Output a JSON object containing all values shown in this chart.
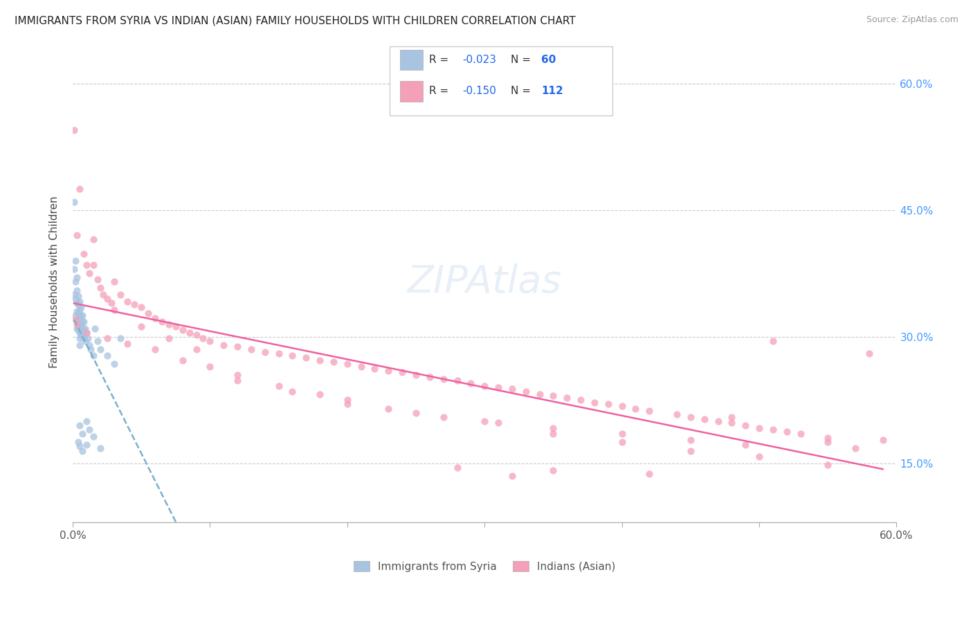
{
  "title": "IMMIGRANTS FROM SYRIA VS INDIAN (ASIAN) FAMILY HOUSEHOLDS WITH CHILDREN CORRELATION CHART",
  "source": "Source: ZipAtlas.com",
  "ylabel": "Family Households with Children",
  "color_syria": "#a8c4e0",
  "color_india": "#f4a0b8",
  "trendline_syria_color": "#7aafd0",
  "trendline_india_color": "#f060a0",
  "watermark": "ZIPAtlas",
  "xlim": [
    0.0,
    0.6
  ],
  "ylim": [
    0.08,
    0.65
  ],
  "ytick_vals": [
    0.15,
    0.3,
    0.45,
    0.6
  ],
  "ytick_labels": [
    "15.0%",
    "30.0%",
    "45.0%",
    "60.0%"
  ],
  "xtick_vals": [
    0.0,
    0.1,
    0.2,
    0.3,
    0.4,
    0.5,
    0.6
  ],
  "xtick_labels": [
    "0.0%",
    "",
    "",
    "",
    "",
    "",
    "60.0%"
  ],
  "syria_x": [
    0.001,
    0.001,
    0.001,
    0.002,
    0.002,
    0.002,
    0.002,
    0.003,
    0.003,
    0.003,
    0.003,
    0.003,
    0.004,
    0.004,
    0.004,
    0.004,
    0.004,
    0.004,
    0.005,
    0.005,
    0.005,
    0.005,
    0.005,
    0.005,
    0.005,
    0.006,
    0.006,
    0.006,
    0.006,
    0.006,
    0.007,
    0.007,
    0.007,
    0.007,
    0.008,
    0.008,
    0.008,
    0.009,
    0.009,
    0.01,
    0.011,
    0.012,
    0.013,
    0.015,
    0.016,
    0.018,
    0.02,
    0.025,
    0.03,
    0.035,
    0.005,
    0.007,
    0.01,
    0.012,
    0.015,
    0.004,
    0.005,
    0.007,
    0.01,
    0.02
  ],
  "syria_y": [
    0.46,
    0.38,
    0.35,
    0.39,
    0.365,
    0.345,
    0.325,
    0.37,
    0.355,
    0.34,
    0.33,
    0.31,
    0.348,
    0.338,
    0.328,
    0.32,
    0.315,
    0.308,
    0.342,
    0.332,
    0.322,
    0.312,
    0.305,
    0.298,
    0.29,
    0.335,
    0.325,
    0.315,
    0.308,
    0.302,
    0.325,
    0.318,
    0.31,
    0.302,
    0.318,
    0.308,
    0.298,
    0.31,
    0.295,
    0.305,
    0.298,
    0.29,
    0.285,
    0.278,
    0.31,
    0.295,
    0.285,
    0.278,
    0.268,
    0.298,
    0.195,
    0.185,
    0.2,
    0.19,
    0.182,
    0.175,
    0.17,
    0.165,
    0.172,
    0.168
  ],
  "india_x": [
    0.001,
    0.003,
    0.005,
    0.008,
    0.01,
    0.012,
    0.015,
    0.018,
    0.02,
    0.022,
    0.025,
    0.028,
    0.03,
    0.035,
    0.04,
    0.045,
    0.05,
    0.055,
    0.06,
    0.065,
    0.07,
    0.075,
    0.08,
    0.085,
    0.09,
    0.095,
    0.1,
    0.11,
    0.12,
    0.13,
    0.14,
    0.15,
    0.16,
    0.17,
    0.18,
    0.19,
    0.2,
    0.21,
    0.22,
    0.23,
    0.24,
    0.25,
    0.26,
    0.27,
    0.28,
    0.29,
    0.3,
    0.31,
    0.32,
    0.33,
    0.34,
    0.35,
    0.36,
    0.37,
    0.38,
    0.39,
    0.4,
    0.41,
    0.42,
    0.44,
    0.45,
    0.46,
    0.47,
    0.48,
    0.49,
    0.5,
    0.51,
    0.52,
    0.53,
    0.55,
    0.002,
    0.01,
    0.025,
    0.04,
    0.06,
    0.08,
    0.1,
    0.12,
    0.15,
    0.18,
    0.2,
    0.23,
    0.27,
    0.31,
    0.35,
    0.4,
    0.45,
    0.49,
    0.51,
    0.55,
    0.58,
    0.59,
    0.003,
    0.015,
    0.03,
    0.05,
    0.07,
    0.09,
    0.12,
    0.16,
    0.2,
    0.25,
    0.3,
    0.35,
    0.4,
    0.45,
    0.5,
    0.55,
    0.35,
    0.42,
    0.28,
    0.32,
    0.48,
    0.57
  ],
  "india_y": [
    0.545,
    0.42,
    0.475,
    0.398,
    0.385,
    0.375,
    0.415,
    0.368,
    0.358,
    0.35,
    0.345,
    0.34,
    0.332,
    0.35,
    0.342,
    0.338,
    0.335,
    0.328,
    0.322,
    0.318,
    0.315,
    0.312,
    0.308,
    0.305,
    0.302,
    0.298,
    0.295,
    0.29,
    0.288,
    0.285,
    0.282,
    0.28,
    0.278,
    0.275,
    0.272,
    0.27,
    0.268,
    0.265,
    0.262,
    0.26,
    0.258,
    0.255,
    0.252,
    0.25,
    0.248,
    0.245,
    0.242,
    0.24,
    0.238,
    0.235,
    0.232,
    0.23,
    0.228,
    0.225,
    0.222,
    0.22,
    0.218,
    0.215,
    0.212,
    0.208,
    0.205,
    0.202,
    0.2,
    0.198,
    0.195,
    0.192,
    0.19,
    0.188,
    0.185,
    0.18,
    0.32,
    0.305,
    0.298,
    0.292,
    0.285,
    0.272,
    0.265,
    0.255,
    0.242,
    0.232,
    0.225,
    0.215,
    0.205,
    0.198,
    0.192,
    0.185,
    0.178,
    0.172,
    0.295,
    0.175,
    0.28,
    0.178,
    0.315,
    0.385,
    0.365,
    0.312,
    0.298,
    0.285,
    0.248,
    0.235,
    0.22,
    0.21,
    0.2,
    0.185,
    0.175,
    0.165,
    0.158,
    0.148,
    0.142,
    0.138,
    0.145,
    0.135,
    0.205,
    0.168
  ]
}
